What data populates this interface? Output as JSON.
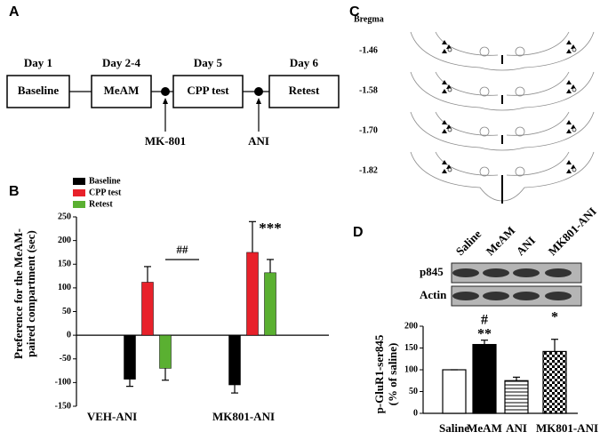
{
  "panel_a": {
    "label": "A",
    "days": [
      "Day 1",
      "Day 2-4",
      "Day 5",
      "Day 6"
    ],
    "stages": [
      "Baseline",
      "MeAM",
      "CPP test",
      "Retest"
    ],
    "injections": [
      "MK-801",
      "ANI"
    ]
  },
  "panel_c": {
    "label": "C",
    "reference": "Bregma",
    "levels": [
      "-1.46",
      "-1.58",
      "-1.70",
      "-1.82"
    ]
  },
  "panel_d_blot": {
    "label": "D",
    "lanes": [
      "Saline",
      "MeAM",
      "ANI",
      "MK801-ANI"
    ],
    "rows": [
      "p845",
      "Actin"
    ]
  },
  "chart_data": [
    {
      "panel": "B",
      "type": "bar",
      "categories": [
        "VEH-ANI",
        "MK801-ANI"
      ],
      "series": [
        {
          "name": "Baseline",
          "color": "#000000",
          "values": [
            -93,
            -105
          ],
          "errors": [
            15,
            17
          ]
        },
        {
          "name": "CPP test",
          "color": "#e8212a",
          "values": [
            112,
            175
          ],
          "errors": [
            33,
            65
          ]
        },
        {
          "name": "Retest",
          "color": "#5ab031",
          "values": [
            -70,
            132
          ],
          "errors": [
            25,
            28
          ]
        }
      ],
      "ylabel_lines": [
        "Preference for the MeAM-",
        "paired compartment (sec)"
      ],
      "ylim": [
        -150,
        250
      ],
      "yticks": [
        -150,
        -100,
        -50,
        0,
        50,
        100,
        150,
        200,
        250
      ],
      "annotations": [
        "##",
        "***"
      ]
    },
    {
      "panel": "D",
      "type": "bar",
      "categories": [
        "Saline",
        "MeAM",
        "ANI",
        "MK801-ANI"
      ],
      "values": [
        100,
        158,
        75,
        142
      ],
      "errors": [
        0,
        10,
        8,
        28
      ],
      "fills": [
        "white",
        "black",
        "hlines",
        "checker"
      ],
      "ylabel_lines": [
        "p-GluR1-ser845",
        "(% of saline)"
      ],
      "ylim": [
        0,
        200
      ],
      "yticks": [
        0,
        50,
        100,
        150,
        200
      ],
      "annotations": [
        "#",
        "**",
        "*"
      ]
    }
  ]
}
